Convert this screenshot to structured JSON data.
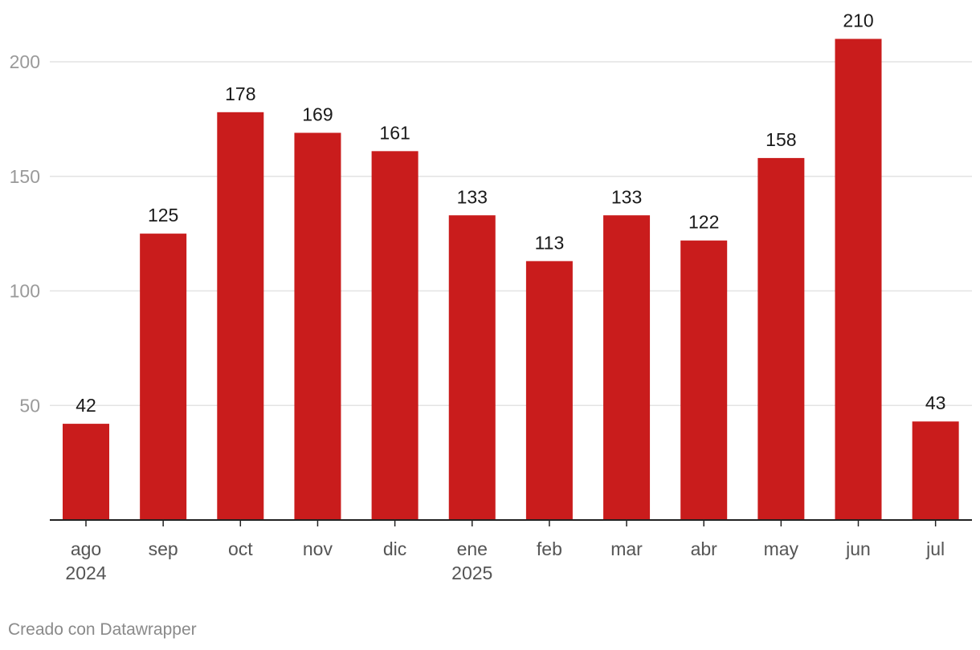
{
  "chart_data": {
    "type": "bar",
    "categories": [
      "ago",
      "sep",
      "oct",
      "nov",
      "dic",
      "ene",
      "feb",
      "mar",
      "abr",
      "may",
      "jun",
      "jul"
    ],
    "category_sublabels": [
      "2024",
      "",
      "",
      "",
      "",
      "2025",
      "",
      "",
      "",
      "",
      "",
      ""
    ],
    "values": [
      42,
      125,
      178,
      169,
      161,
      133,
      113,
      133,
      122,
      158,
      210,
      43
    ],
    "title": "",
    "xlabel": "",
    "ylabel": "",
    "ylim": [
      0,
      200
    ],
    "yticks": [
      50,
      100,
      150,
      200
    ],
    "grid": true,
    "bar_color": "#c91c1c",
    "data_labels": true
  },
  "footer": {
    "credit": "Creado con Datawrapper"
  }
}
